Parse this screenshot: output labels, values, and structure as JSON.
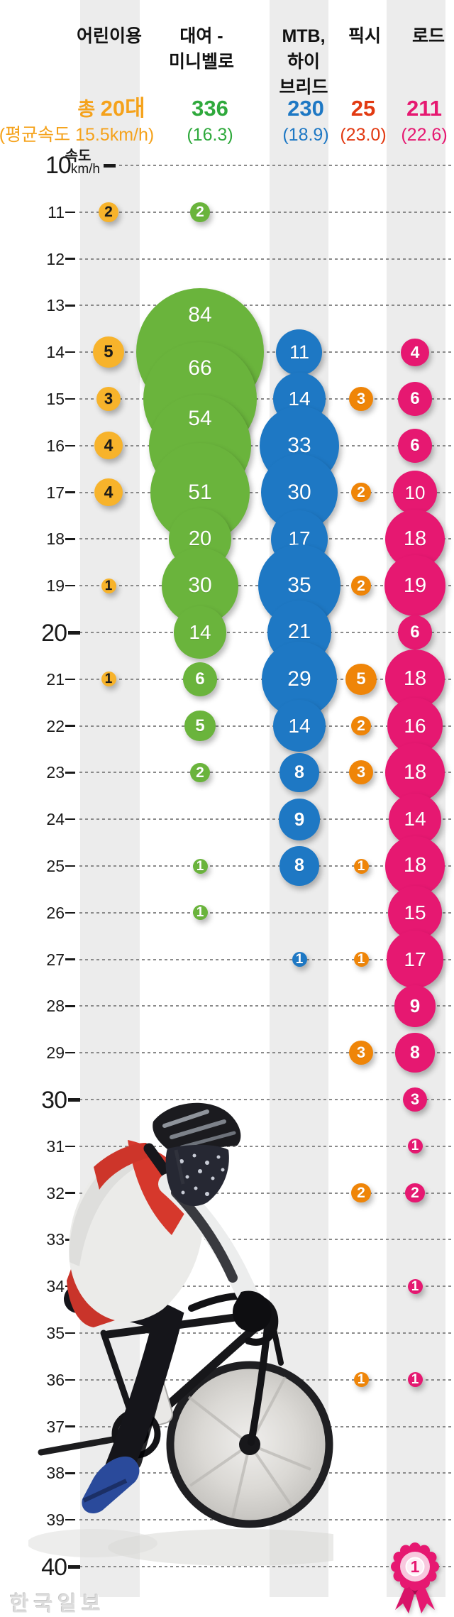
{
  "chart_data": {
    "type": "bubble",
    "description": "Distribution of measured riding speeds (km/h) by bicycle type; bubble size and label = number of bicycles at that speed",
    "y_axis": {
      "label": "속도",
      "base_label": "10",
      "unit_suffix": "km/h",
      "min": 10,
      "max": 40,
      "tick_step": 1,
      "major_ticks": [
        10,
        20,
        30,
        40
      ],
      "grid": "dashed horizontal lines"
    },
    "legend_position": "column headers on top",
    "series": [
      {
        "id": "kids",
        "name": "어린이용",
        "label_lines": [
          "어린이용"
        ],
        "total": 20,
        "avg_speed": 15.5,
        "total_label_prefix": "총 ",
        "total_label": "20대",
        "avg_label": "(평균속도 15.5km/h)",
        "color": "#F7B32B",
        "number_color": "#1A1A1A",
        "total_color": "#F5A21B",
        "points": [
          {
            "speed": 11,
            "count": 2
          },
          {
            "speed": 14,
            "count": 5
          },
          {
            "speed": 15,
            "count": 3
          },
          {
            "speed": 16,
            "count": 4
          },
          {
            "speed": 17,
            "count": 4
          },
          {
            "speed": 19,
            "count": 1
          },
          {
            "speed": 21,
            "count": 1
          }
        ]
      },
      {
        "id": "rental-minivelo",
        "name": "대여 - 미니벨로",
        "label_lines": [
          "대여 -",
          "미니벨로"
        ],
        "total": 336,
        "avg_speed": 16.3,
        "total_label_prefix": "",
        "total_label": "336",
        "avg_label": "(16.3)",
        "color": "#6AB43C",
        "number_color": "#FFFFFF",
        "total_color": "#2FA93C",
        "points": [
          {
            "speed": 11,
            "count": 2
          },
          {
            "speed": 14,
            "count": 84
          },
          {
            "speed": 15,
            "count": 66
          },
          {
            "speed": 16,
            "count": 54
          },
          {
            "speed": 17,
            "count": 51
          },
          {
            "speed": 18,
            "count": 20
          },
          {
            "speed": 19,
            "count": 30
          },
          {
            "speed": 20,
            "count": 14
          },
          {
            "speed": 21,
            "count": 6
          },
          {
            "speed": 22,
            "count": 5
          },
          {
            "speed": 23,
            "count": 2
          },
          {
            "speed": 25,
            "count": 1
          },
          {
            "speed": 26,
            "count": 1
          }
        ]
      },
      {
        "id": "mtb-hybrid",
        "name": "MTB, 하이브리드",
        "label_lines": [
          "MTB,",
          "하이",
          "브리드"
        ],
        "total": 230,
        "avg_speed": 18.9,
        "total_label_prefix": "",
        "total_label": "230",
        "avg_label": "(18.9)",
        "color": "#1E78C4",
        "number_color": "#FFFFFF",
        "total_color": "#1E78C4",
        "points": [
          {
            "speed": 14,
            "count": 11
          },
          {
            "speed": 15,
            "count": 14
          },
          {
            "speed": 16,
            "count": 33
          },
          {
            "speed": 17,
            "count": 30
          },
          {
            "speed": 18,
            "count": 17
          },
          {
            "speed": 19,
            "count": 35
          },
          {
            "speed": 20,
            "count": 21
          },
          {
            "speed": 21,
            "count": 29
          },
          {
            "speed": 22,
            "count": 14
          },
          {
            "speed": 23,
            "count": 8
          },
          {
            "speed": 24,
            "count": 9
          },
          {
            "speed": 25,
            "count": 8
          },
          {
            "speed": 27,
            "count": 1
          }
        ]
      },
      {
        "id": "fixie",
        "name": "픽시",
        "label_lines": [
          "픽시"
        ],
        "total": 25,
        "avg_speed": 23.0,
        "total_label_prefix": "",
        "total_label": "25",
        "avg_label": "(23.0)",
        "color": "#EF8508",
        "number_color": "#FFFFFF",
        "total_color": "#E23A12",
        "points": [
          {
            "speed": 15,
            "count": 3
          },
          {
            "speed": 17,
            "count": 2
          },
          {
            "speed": 19,
            "count": 2
          },
          {
            "speed": 21,
            "count": 5
          },
          {
            "speed": 22,
            "count": 2
          },
          {
            "speed": 23,
            "count": 3
          },
          {
            "speed": 25,
            "count": 1
          },
          {
            "speed": 27,
            "count": 1
          },
          {
            "speed": 29,
            "count": 3
          },
          {
            "speed": 32,
            "count": 2
          },
          {
            "speed": 36,
            "count": 1
          }
        ]
      },
      {
        "id": "road",
        "name": "로드",
        "label_lines": [
          "로드"
        ],
        "total": 211,
        "avg_speed": 22.6,
        "total_label_prefix": "",
        "total_label": "211",
        "avg_label": "(22.6)",
        "color": "#E61871",
        "number_color": "#FFFFFF",
        "total_color": "#E61871",
        "points": [
          {
            "speed": 14,
            "count": 4
          },
          {
            "speed": 15,
            "count": 6
          },
          {
            "speed": 16,
            "count": 6
          },
          {
            "speed": 17,
            "count": 10
          },
          {
            "speed": 18,
            "count": 18
          },
          {
            "speed": 19,
            "count": 19
          },
          {
            "speed": 20,
            "count": 6
          },
          {
            "speed": 21,
            "count": 18
          },
          {
            "speed": 22,
            "count": 16
          },
          {
            "speed": 23,
            "count": 18
          },
          {
            "speed": 24,
            "count": 14
          },
          {
            "speed": 25,
            "count": 18
          },
          {
            "speed": 26,
            "count": 15
          },
          {
            "speed": 27,
            "count": 17
          },
          {
            "speed": 28,
            "count": 9
          },
          {
            "speed": 29,
            "count": 8
          },
          {
            "speed": 30,
            "count": 3
          },
          {
            "speed": 31,
            "count": 1
          },
          {
            "speed": 32,
            "count": 2
          },
          {
            "speed": 34,
            "count": 1
          },
          {
            "speed": 36,
            "count": 1
          },
          {
            "speed": 40,
            "count": 1,
            "award": true
          }
        ]
      }
    ]
  },
  "footer": {
    "logo": "한국일보"
  }
}
